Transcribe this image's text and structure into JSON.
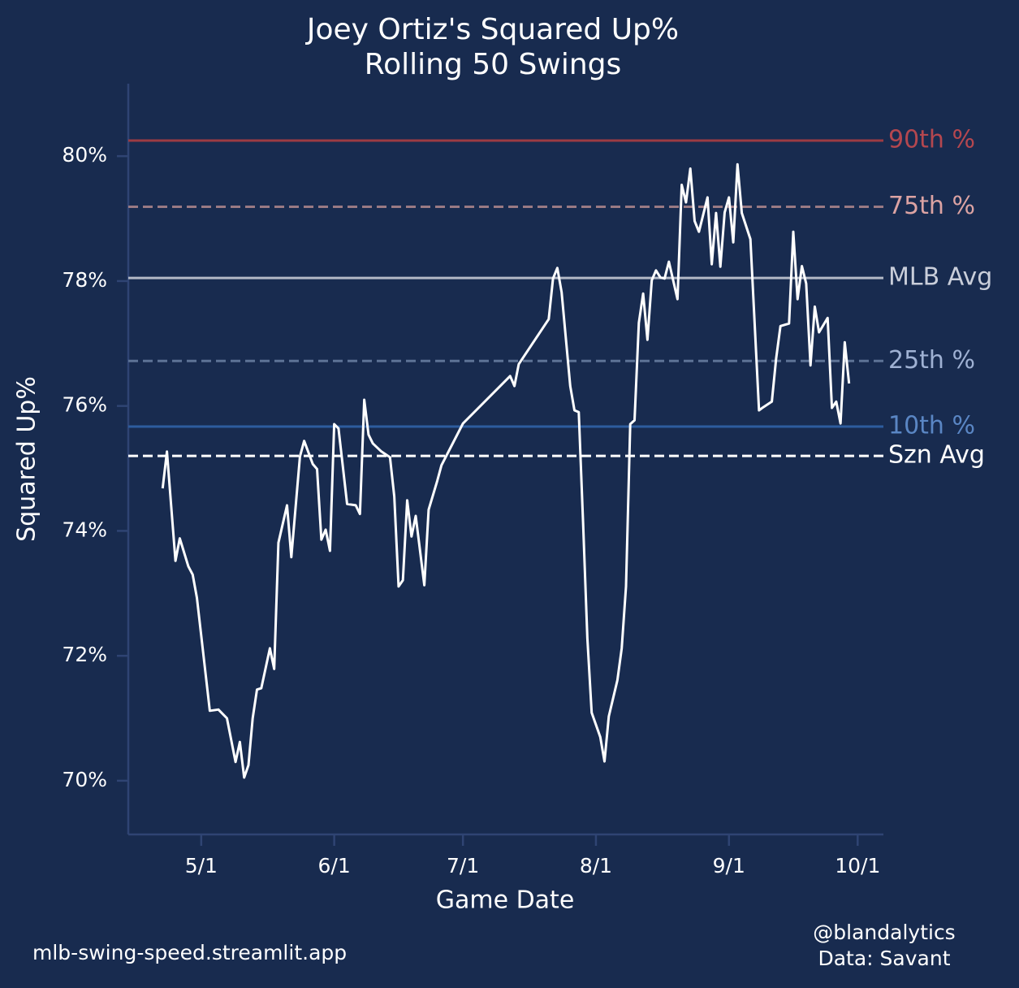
{
  "chart_data": {
    "type": "line",
    "title": "Joey Ortiz's Squared Up%",
    "subtitle": "Rolling 50 Swings",
    "x_label": "Game Date",
    "y_label": "Squared Up%",
    "footer_left": "mlb-swing-speed.streamlit.app",
    "footer_right": [
      "@blandalytics",
      "Data: Savant"
    ],
    "color": "#ffffff",
    "x": [
      "4/22",
      "4/23",
      "4/25",
      "4/26",
      "4/28",
      "4/29",
      "4/30",
      "5/3",
      "5/5",
      "5/7",
      "5/9",
      "5/10",
      "5/11",
      "5/12",
      "5/13",
      "5/14",
      "5/15",
      "5/17",
      "5/18",
      "5/19",
      "5/21",
      "5/22",
      "5/24",
      "5/25",
      "5/27",
      "5/28",
      "5/29",
      "5/30",
      "5/31",
      "6/1",
      "6/2",
      "6/4",
      "6/6",
      "6/7",
      "6/8",
      "6/9",
      "6/10",
      "6/12",
      "6/14",
      "6/15",
      "6/16",
      "6/17",
      "6/18",
      "6/19",
      "6/20",
      "6/22",
      "6/23",
      "6/25",
      "6/26",
      "7/1",
      "7/12",
      "7/13",
      "7/14",
      "7/21",
      "7/22",
      "7/23",
      "7/24",
      "7/26",
      "7/27",
      "7/28",
      "7/29",
      "7/30",
      "7/31",
      "8/2",
      "8/3",
      "8/4",
      "8/6",
      "8/7",
      "8/8",
      "8/9",
      "8/10",
      "8/11",
      "8/12",
      "8/13",
      "8/14",
      "8/15",
      "8/16",
      "8/17",
      "8/18",
      "8/20",
      "8/21",
      "8/22",
      "8/23",
      "8/24",
      "8/25",
      "8/27",
      "8/28",
      "8/29",
      "8/30",
      "8/31",
      "9/1",
      "9/2",
      "9/3",
      "9/4",
      "9/6",
      "9/8",
      "9/9",
      "9/11",
      "9/12",
      "9/13",
      "9/15",
      "9/16",
      "9/17",
      "9/18",
      "9/19",
      "9/20",
      "9/21",
      "9/22",
      "9/24",
      "9/25",
      "9/26",
      "9/27",
      "9/28",
      "9/29"
    ],
    "values": [
      74.68,
      75.27,
      73.52,
      73.88,
      73.43,
      73.3,
      72.93,
      71.12,
      71.14,
      71.0,
      70.3,
      70.62,
      70.05,
      70.25,
      71.0,
      71.46,
      71.48,
      72.12,
      71.79,
      73.81,
      74.41,
      73.58,
      75.19,
      75.44,
      75.07,
      74.99,
      73.86,
      74.02,
      73.68,
      75.71,
      75.64,
      74.43,
      74.41,
      74.27,
      76.1,
      75.54,
      75.4,
      75.27,
      75.18,
      74.55,
      73.11,
      73.21,
      74.49,
      73.91,
      74.24,
      73.13,
      74.34,
      74.8,
      75.05,
      75.72,
      76.48,
      76.32,
      76.67,
      77.39,
      78.04,
      78.21,
      77.82,
      76.32,
      75.93,
      75.9,
      74.14,
      72.28,
      71.09,
      70.7,
      70.31,
      71.03,
      71.61,
      72.12,
      73.11,
      75.71,
      75.77,
      77.33,
      77.8,
      77.06,
      78.01,
      78.17,
      78.06,
      78.04,
      78.31,
      77.71,
      79.54,
      79.26,
      79.8,
      78.96,
      78.79,
      79.34,
      78.27,
      79.09,
      78.23,
      79.1,
      79.34,
      78.62,
      79.87,
      79.09,
      78.67,
      75.93,
      75.98,
      76.07,
      76.76,
      77.28,
      77.32,
      78.79,
      77.71,
      78.24,
      77.96,
      76.65,
      77.59,
      77.18,
      77.41,
      75.97,
      76.07,
      75.72,
      77.02,
      76.36
    ],
    "reference_lines": [
      {
        "label": "90th %",
        "value": 80.25,
        "color": "#9c3b43",
        "label_color": "#b4474f",
        "dashed": false
      },
      {
        "label": "75th %",
        "value": 79.19,
        "color": "#9a7a84",
        "label_color": "#dca3a3",
        "dashed": true
      },
      {
        "label": "MLB Avg",
        "value": 78.05,
        "color": "#b3b9c6",
        "label_color": "#c9ceda",
        "dashed": false
      },
      {
        "label": "25th %",
        "value": 76.72,
        "color": "#5d7396",
        "label_color": "#9fb1d3",
        "dashed": true
      },
      {
        "label": "10th %",
        "value": 75.67,
        "color": "#2d5c9e",
        "label_color": "#5a86c4",
        "dashed": false
      },
      {
        "label": "Szn Avg",
        "value": 75.2,
        "color": "#ffffff",
        "label_color": "#ffffff",
        "dashed": true
      }
    ],
    "xlim": [
      "4/14",
      "10/7"
    ],
    "xticks": [
      "5/1",
      "6/1",
      "7/1",
      "8/1",
      "9/1",
      "10/1"
    ],
    "ylim": [
      69.14,
      81.16
    ],
    "yticks": [
      {
        "value": 70,
        "label": "70%"
      },
      {
        "value": 72,
        "label": "72%"
      },
      {
        "value": 74,
        "label": "74%"
      },
      {
        "value": 76,
        "label": "76%"
      },
      {
        "value": 78,
        "label": "78%"
      },
      {
        "value": 80,
        "label": "80%"
      }
    ]
  }
}
